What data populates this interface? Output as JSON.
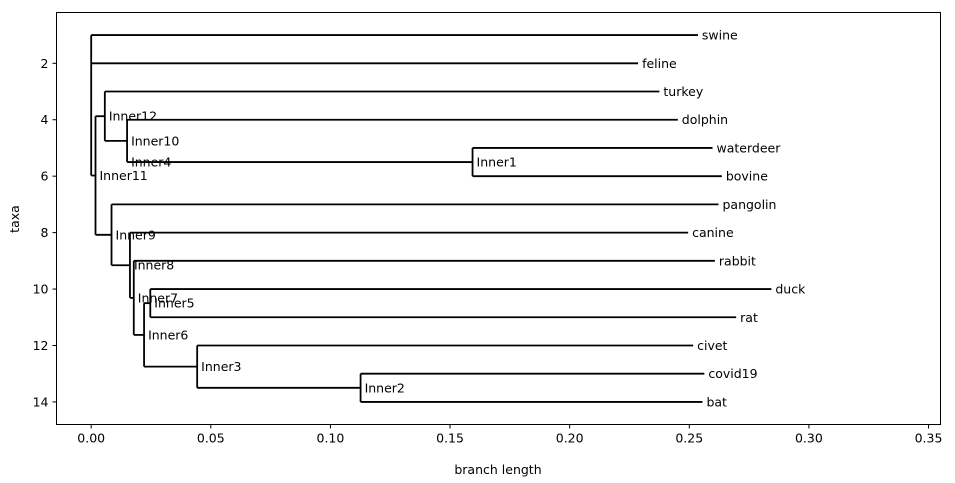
{
  "chart_data": {
    "type": "dendrogram",
    "xlabel": "branch length",
    "ylabel": "taxa",
    "xlim": [
      -0.0145,
      0.355
    ],
    "ylim": [
      14.8,
      0.2
    ],
    "x_ticks": [
      {
        "value": 0.0,
        "label": "0.00"
      },
      {
        "value": 0.05,
        "label": "0.05"
      },
      {
        "value": 0.1,
        "label": "0.10"
      },
      {
        "value": 0.15,
        "label": "0.15"
      },
      {
        "value": 0.2,
        "label": "0.20"
      },
      {
        "value": 0.25,
        "label": "0.25"
      },
      {
        "value": 0.3,
        "label": "0.30"
      },
      {
        "value": 0.35,
        "label": "0.35"
      }
    ],
    "y_ticks": [
      {
        "value": 2,
        "label": "2"
      },
      {
        "value": 4,
        "label": "4"
      },
      {
        "value": 6,
        "label": "6"
      },
      {
        "value": 8,
        "label": "8"
      },
      {
        "value": 10,
        "label": "10"
      },
      {
        "value": 12,
        "label": "12"
      },
      {
        "value": 14,
        "label": "14"
      }
    ],
    "leaves": [
      {
        "name": "swine",
        "x": 0.2536,
        "y": 1
      },
      {
        "name": "feline",
        "x": 0.2286,
        "y": 2
      },
      {
        "name": "turkey",
        "x": 0.2375,
        "y": 3
      },
      {
        "name": "dolphin",
        "x": 0.2452,
        "y": 4
      },
      {
        "name": "waterdeer",
        "x": 0.2597,
        "y": 5
      },
      {
        "name": "bovine",
        "x": 0.2636,
        "y": 6
      },
      {
        "name": "pangolin",
        "x": 0.2622,
        "y": 7
      },
      {
        "name": "canine",
        "x": 0.2495,
        "y": 8
      },
      {
        "name": "rabbit",
        "x": 0.2607,
        "y": 9
      },
      {
        "name": "duck",
        "x": 0.2843,
        "y": 10
      },
      {
        "name": "rat",
        "x": 0.2696,
        "y": 11
      },
      {
        "name": "civet",
        "x": 0.2516,
        "y": 12
      },
      {
        "name": "covid19",
        "x": 0.2563,
        "y": 13
      },
      {
        "name": "bat",
        "x": 0.2555,
        "y": 14
      }
    ],
    "internal_nodes": [
      {
        "name": "",
        "x": 0.0,
        "children": [
          "swine",
          "feline",
          "Inner11"
        ]
      },
      {
        "name": "Inner11",
        "x": 0.0018,
        "children": [
          "Inner12",
          "Inner9"
        ]
      },
      {
        "name": "Inner12",
        "x": 0.0057,
        "children": [
          "turkey",
          "Inner10"
        ]
      },
      {
        "name": "Inner10",
        "x": 0.015,
        "children": [
          "dolphin",
          "Inner4"
        ]
      },
      {
        "name": "Inner4",
        "x": 0.015,
        "children": [
          "Inner1"
        ]
      },
      {
        "name": "Inner1",
        "x": 0.1594,
        "children": [
          "waterdeer",
          "bovine"
        ]
      },
      {
        "name": "Inner9",
        "x": 0.0085,
        "children": [
          "pangolin",
          "Inner8"
        ]
      },
      {
        "name": "Inner8",
        "x": 0.0162,
        "children": [
          "canine",
          "Inner7"
        ]
      },
      {
        "name": "Inner7",
        "x": 0.0178,
        "children": [
          "rabbit",
          "Inner6"
        ]
      },
      {
        "name": "Inner6",
        "x": 0.0221,
        "children": [
          "Inner5",
          "Inner3"
        ]
      },
      {
        "name": "Inner5",
        "x": 0.0247,
        "children": [
          "duck",
          "rat"
        ]
      },
      {
        "name": "Inner3",
        "x": 0.0443,
        "children": [
          "civet",
          "Inner2"
        ]
      },
      {
        "name": "Inner2",
        "x": 0.1126,
        "children": [
          "covid19",
          "bat"
        ]
      }
    ],
    "grid": false,
    "legend": "none"
  }
}
